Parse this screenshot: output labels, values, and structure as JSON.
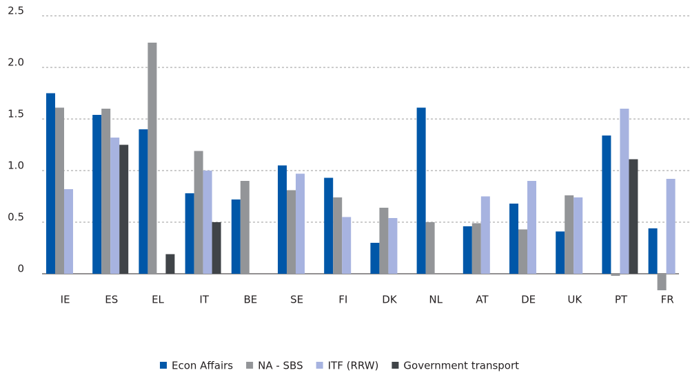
{
  "chart_data": {
    "type": "bar",
    "categories": [
      "IE",
      "ES",
      "EL",
      "IT",
      "BE",
      "SE",
      "FI",
      "DK",
      "NL",
      "AT",
      "DE",
      "UK",
      "PT",
      "FR"
    ],
    "series": [
      {
        "name": "Econ Affairs",
        "color": "#0057a8",
        "values": [
          1.75,
          1.54,
          1.4,
          0.78,
          0.72,
          1.05,
          0.93,
          0.3,
          1.61,
          0.46,
          0.68,
          0.41,
          1.34,
          0.44
        ]
      },
      {
        "name": "NA - SBS",
        "color": "#939598",
        "values": [
          1.61,
          1.6,
          2.24,
          1.19,
          0.9,
          0.81,
          0.74,
          0.64,
          0.5,
          0.49,
          0.43,
          0.76,
          -0.02,
          -0.16
        ]
      },
      {
        "name": "ITF (RRW)",
        "color": "#a7b3e0",
        "values": [
          0.82,
          1.32,
          null,
          1.0,
          null,
          0.97,
          0.55,
          0.54,
          null,
          0.75,
          0.9,
          0.74,
          1.6,
          0.92
        ]
      },
      {
        "name": "Government transport",
        "color": "#404448",
        "values": [
          null,
          1.25,
          0.19,
          0.5,
          null,
          null,
          null,
          null,
          null,
          null,
          null,
          null,
          1.11,
          null
        ]
      }
    ],
    "ylim": [
      -0.25,
      2.5
    ],
    "yticks": [
      0,
      0.5,
      {
        "value": 1,
        "label": "1.0"
      },
      1.5,
      {
        "value": 2,
        "label": "2.0"
      },
      2.5
    ],
    "grid": true,
    "legend": "bottom"
  }
}
